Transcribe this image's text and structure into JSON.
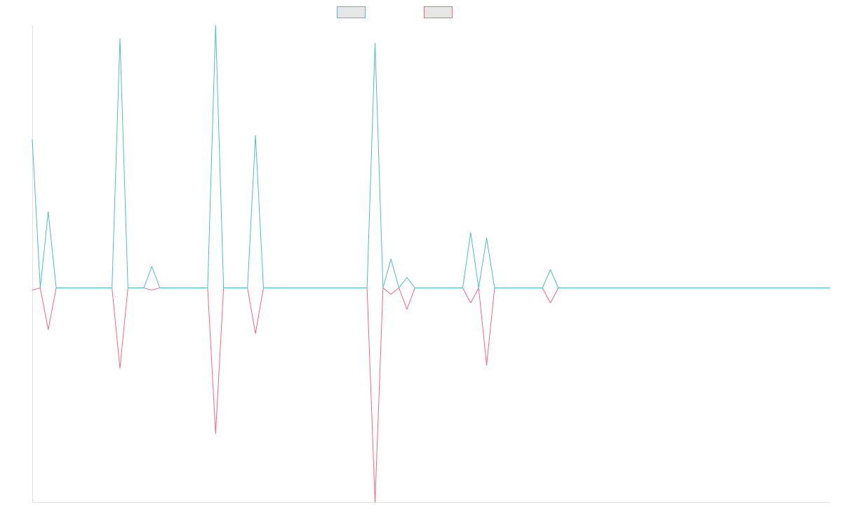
{
  "chart_data": {
    "type": "line",
    "title": "",
    "xlabel": "",
    "ylabel": "",
    "grid": false,
    "legend": "top-center",
    "x_range": [
      0,
      100
    ],
    "ylim": [
      -1,
      1
    ],
    "series": [
      {
        "color": "#4bc0c0",
        "values": [
          0.565,
          0,
          0.29,
          0,
          0,
          0,
          0,
          0,
          0,
          0,
          0,
          0.949,
          0,
          0,
          0,
          0.082,
          0,
          0,
          0,
          0,
          0,
          0,
          0,
          1.0,
          0,
          0,
          0,
          0,
          0.58,
          0,
          0,
          0,
          0,
          0,
          0,
          0,
          0,
          0,
          0,
          0,
          0,
          0,
          0,
          0.932,
          0,
          0.11,
          0,
          0.04,
          0,
          0,
          0,
          0,
          0,
          0,
          0,
          0.21,
          0,
          0.19,
          0,
          0,
          0,
          0,
          0,
          0,
          0,
          0.07,
          0,
          0,
          0,
          0,
          0,
          0,
          0,
          0,
          0,
          0,
          0,
          0,
          0,
          0,
          0,
          0,
          0,
          0,
          0,
          0,
          0,
          0,
          0,
          0,
          0,
          0,
          0,
          0,
          0,
          0,
          0,
          0,
          0,
          0,
          0
        ]
      },
      {
        "color": "#ff6384",
        "values": [
          -0.01,
          0,
          -0.195,
          0,
          0,
          0,
          0,
          0,
          0,
          0,
          0,
          -0.375,
          0,
          0,
          0,
          -0.01,
          0,
          0,
          0,
          0,
          0,
          0,
          0,
          -0.68,
          0,
          0,
          0,
          0,
          -0.213,
          0,
          0,
          0,
          0,
          0,
          0,
          0,
          0,
          0,
          0,
          0,
          0,
          0,
          0,
          -1.0,
          0,
          -0.03,
          0,
          -0.1,
          0,
          0,
          0,
          0,
          0,
          0,
          0,
          -0.07,
          0,
          -0.36,
          0,
          0,
          0,
          0,
          0,
          0,
          0,
          -0.07,
          0,
          0,
          0,
          0,
          0,
          0,
          0,
          0,
          0,
          0,
          0,
          0,
          0,
          0,
          0,
          0,
          0,
          0,
          0,
          0,
          0,
          0,
          0,
          0,
          0,
          0,
          0,
          0,
          0,
          0,
          0,
          0,
          0,
          0,
          0
        ]
      }
    ]
  }
}
